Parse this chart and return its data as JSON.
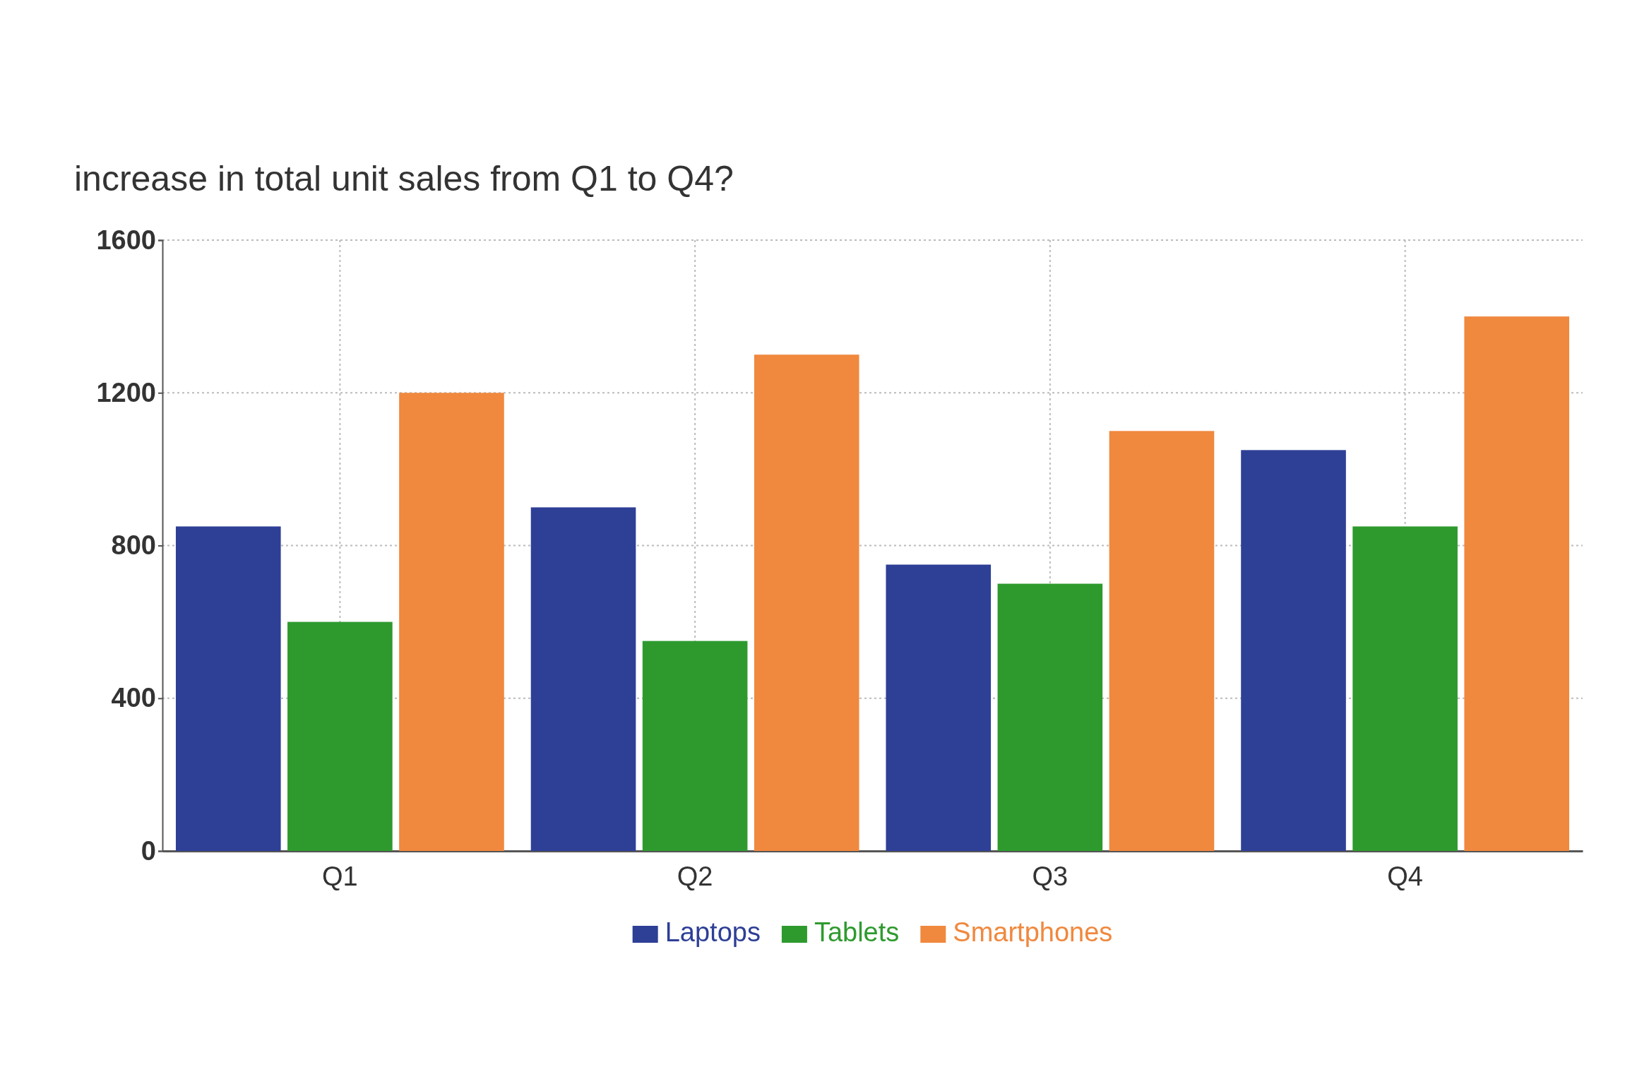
{
  "chart_data": {
    "type": "bar",
    "title": "increase in total unit sales from Q1 to Q4?",
    "categories": [
      "Q1",
      "Q2",
      "Q3",
      "Q4"
    ],
    "series": [
      {
        "name": "Laptops",
        "color": "#2e3f96",
        "values": [
          850,
          900,
          750,
          1050
        ]
      },
      {
        "name": "Tablets",
        "color": "#2e9a2e",
        "values": [
          600,
          550,
          700,
          850
        ]
      },
      {
        "name": "Smartphones",
        "color": "#f0883e",
        "values": [
          1200,
          1300,
          1100,
          1400
        ]
      }
    ],
    "ylim": [
      0,
      1600
    ],
    "yticks": [
      0,
      400,
      800,
      1200,
      1600
    ],
    "grid": true,
    "legend": "bottom"
  }
}
